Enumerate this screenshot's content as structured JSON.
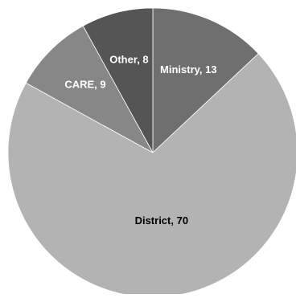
{
  "chart_data": {
    "type": "pie",
    "title": "",
    "start_angle_deg": 0,
    "direction": "clockwise",
    "slices": [
      {
        "label": "Ministry",
        "value": 13,
        "text": "Ministry, 13",
        "color": "#6f6f6f",
        "label_color": "#ffffff"
      },
      {
        "label": "District",
        "value": 70,
        "text": "District, 70",
        "color": "#b3b3b3",
        "label_color": "#000000"
      },
      {
        "label": "CARE",
        "value": 9,
        "text": "CARE, 9",
        "color": "#878787",
        "label_color": "#ffffff"
      },
      {
        "label": "Other",
        "value": 8,
        "text": "Other, 8",
        "color": "#555555",
        "label_color": "#ffffff"
      }
    ]
  },
  "colors": {
    "background": "#ffffff",
    "slice_border": "#ffffff"
  }
}
